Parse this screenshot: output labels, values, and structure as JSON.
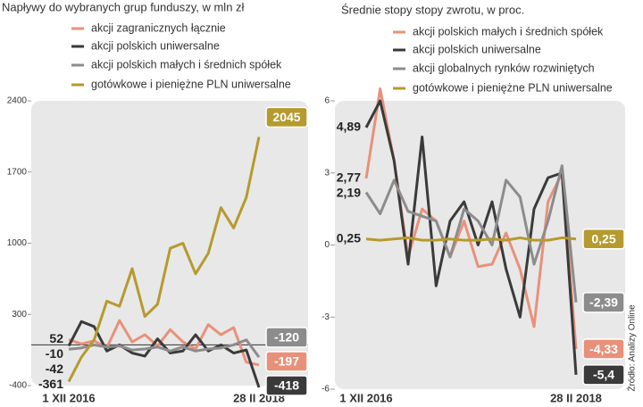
{
  "chart_data": [
    {
      "type": "line",
      "title": "Napływy do wybranych grup funduszy, w mln zł",
      "categories": [
        "1 XII 2016",
        null,
        null,
        null,
        null,
        null,
        null,
        null,
        null,
        null,
        null,
        null,
        null,
        null,
        null,
        "28 II 2018"
      ],
      "series": [
        {
          "name": "akcji zagranicznych łącznie",
          "color": "#e8917a",
          "values": [
            52,
            10,
            40,
            -30,
            240,
            30,
            100,
            -10,
            150,
            30,
            -40,
            200,
            100,
            170,
            -170,
            -197
          ]
        },
        {
          "name": "akcji polskich uniwersalne",
          "color": "#3a3a3a",
          "values": [
            -10,
            230,
            180,
            -60,
            0,
            -80,
            -110,
            60,
            -80,
            -60,
            100,
            -60,
            0,
            -80,
            -50,
            -418
          ]
        },
        {
          "name": "akcji polskich małych i średnich spółek",
          "color": "#8c8c8c",
          "values": [
            -42,
            -30,
            0,
            -20,
            -10,
            -50,
            -40,
            -20,
            -60,
            -20,
            -60,
            -40,
            -30,
            0,
            50,
            -120
          ]
        },
        {
          "name": "gotówkowe i pieniężne PLN uniwersalne",
          "color": "#b59a2e",
          "values": [
            -361,
            -120,
            50,
            430,
            380,
            750,
            280,
            400,
            950,
            1000,
            700,
            900,
            1350,
            1150,
            1450,
            2045
          ]
        }
      ],
      "ylim": [
        -400,
        2400
      ],
      "yticks": [
        -400,
        300,
        1000,
        1700,
        2400
      ],
      "zero_line": true
    },
    {
      "type": "line",
      "title": "Średnie stopy stopy zwrotu, w proc.",
      "categories": [
        "1 XII 2016",
        null,
        null,
        null,
        null,
        null,
        null,
        null,
        null,
        null,
        null,
        null,
        null,
        null,
        null,
        "28 II 2018"
      ],
      "series": [
        {
          "name": "akcji polskich małych i średnich spółek",
          "color": "#e8917a",
          "values": [
            2.77,
            6.5,
            3.5,
            -0.5,
            1.5,
            1.0,
            -0.5,
            1.0,
            -0.9,
            -0.8,
            0.5,
            -1.0,
            -3.4,
            1.8,
            3.0,
            -4.33
          ],
          "value_labels": [
            "2,77",
            null,
            null,
            null,
            null,
            null,
            null,
            null,
            null,
            null,
            null,
            null,
            null,
            null,
            null,
            "-4,33"
          ]
        },
        {
          "name": "akcji polskich uniwersalne",
          "color": "#3a3a3a",
          "values": [
            4.89,
            6.0,
            3.5,
            -0.8,
            4.5,
            -1.7,
            1.0,
            1.8,
            0.0,
            1.8,
            -1.0,
            -3.0,
            1.5,
            2.8,
            3.0,
            -5.4
          ],
          "value_labels": [
            "4,89",
            null,
            null,
            null,
            null,
            null,
            null,
            null,
            null,
            null,
            null,
            null,
            null,
            null,
            null,
            "-5,4"
          ]
        },
        {
          "name": "akcji globalnych rynków rozwiniętych",
          "color": "#8c8c8c",
          "values": [
            2.19,
            1.3,
            2.7,
            1.4,
            1.2,
            1.0,
            -0.5,
            1.5,
            1.0,
            0.0,
            2.7,
            2.0,
            -0.8,
            1.0,
            3.3,
            -2.39
          ],
          "value_labels": [
            "2,19",
            null,
            null,
            null,
            null,
            null,
            null,
            null,
            null,
            null,
            null,
            null,
            null,
            null,
            null,
            "-2,39"
          ]
        },
        {
          "name": "gotówkowe i pieniężne PLN uniwersalne",
          "color": "#b59a2e",
          "values": [
            0.25,
            0.2,
            0.25,
            0.3,
            0.2,
            0.2,
            0.25,
            0.2,
            0.2,
            0.25,
            0.2,
            0.3,
            0.2,
            0.2,
            0.3,
            0.25
          ],
          "value_labels": [
            "0,25",
            null,
            null,
            null,
            null,
            null,
            null,
            null,
            null,
            null,
            null,
            null,
            null,
            null,
            null,
            "0,25"
          ]
        }
      ],
      "ylim": [
        -6,
        6
      ],
      "yticks": [
        -6,
        3,
        0,
        -3,
        6
      ]
    }
  ],
  "source": "Źródło: Analizy Online"
}
